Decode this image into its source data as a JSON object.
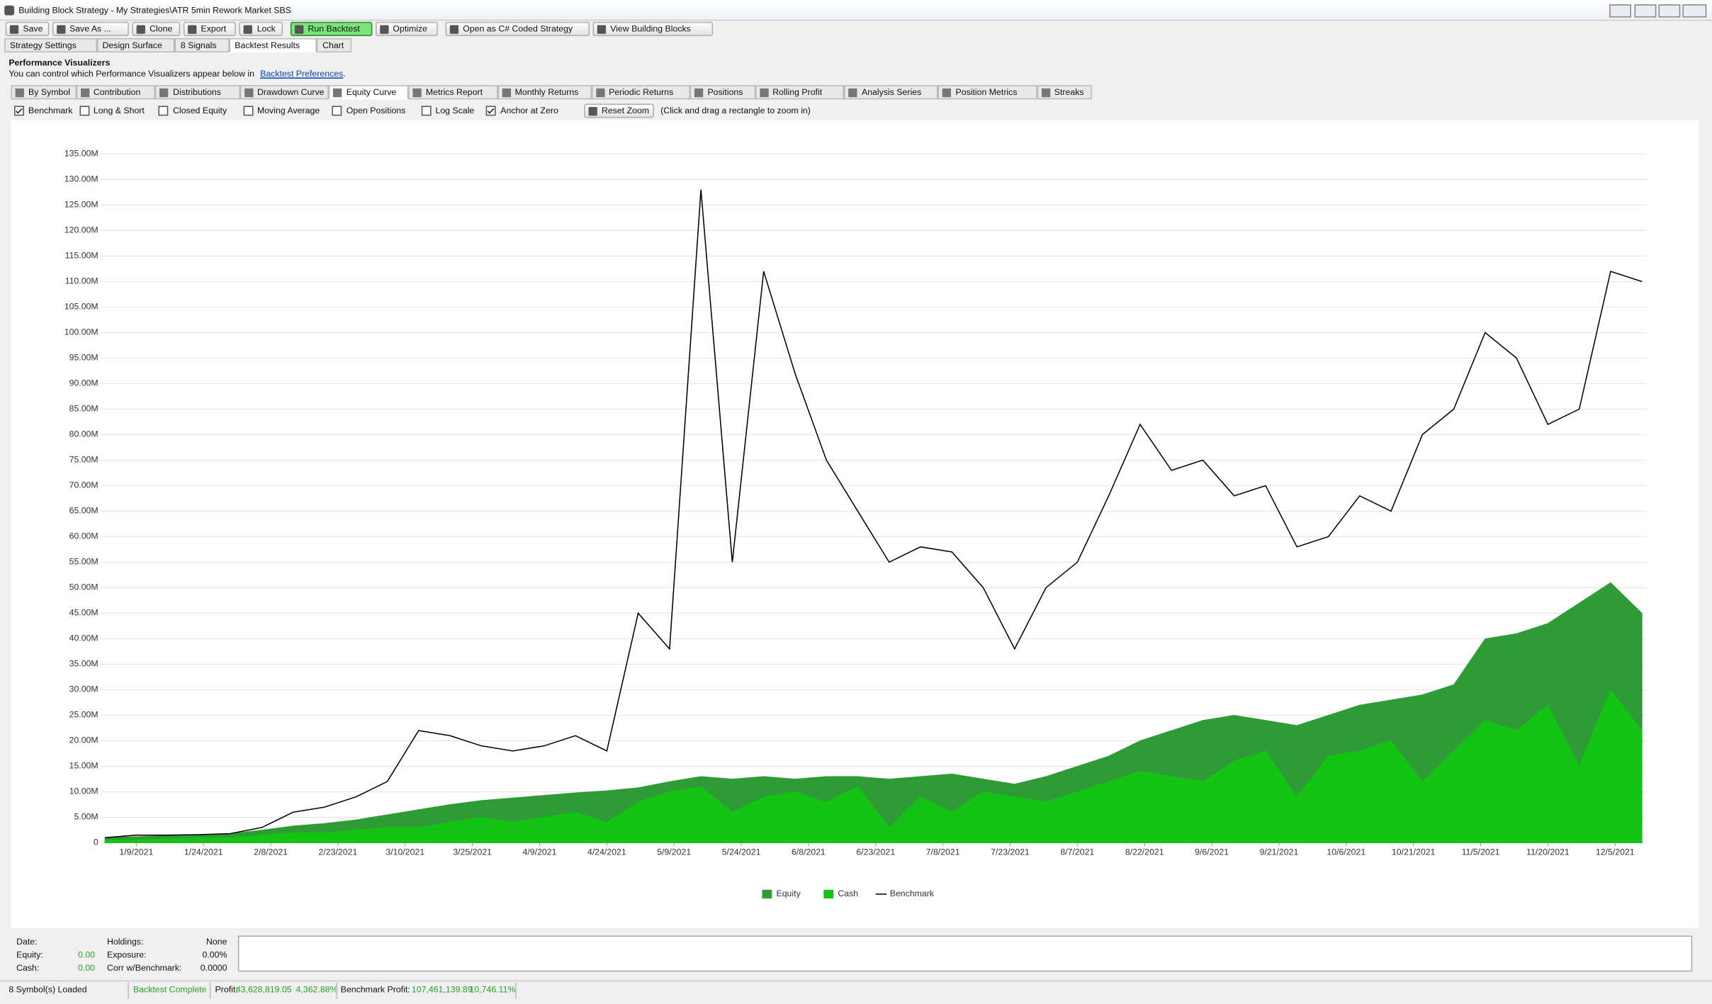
{
  "window": {
    "title": "Building Block Strategy - My Strategies\\ATR 5min Rework Market SBS"
  },
  "toolbar": {
    "items": [
      "Save",
      "Save As ...",
      "Clone",
      "Export",
      "Lock",
      "Run Backtest",
      "Optimize",
      "Open as C# Coded Strategy",
      "View Building Blocks"
    ],
    "highlight": 5
  },
  "tabs": {
    "items": [
      "Strategy Settings",
      "Design Surface",
      "8 Signals",
      "Backtest Results",
      "Chart"
    ],
    "active": 3
  },
  "visualizers": {
    "heading": "Performance Visualizers",
    "note": "You can control which Performance Visualizers appear below in",
    "link": "Backtest Preferences",
    "note_end": "."
  },
  "viz_tabs": {
    "items": [
      "By Symbol",
      "Contribution",
      "Distributions",
      "Drawdown Curve",
      "Equity Curve",
      "Metrics Report",
      "Monthly Returns",
      "Periodic Returns",
      "Positions",
      "Rolling Profit",
      "Analysis Series",
      "Position Metrics",
      "Streaks"
    ],
    "active": 4
  },
  "options": {
    "checkboxes": [
      {
        "label": "Benchmark",
        "checked": true
      },
      {
        "label": "Long & Short",
        "checked": false
      },
      {
        "label": "Closed Equity",
        "checked": false
      },
      {
        "label": "Moving Average",
        "checked": false
      },
      {
        "label": "Open Positions",
        "checked": false
      },
      {
        "label": "Log Scale",
        "checked": false
      },
      {
        "label": "Anchor at Zero",
        "checked": true
      }
    ],
    "button": "Reset Zoom",
    "hint": "(Click and drag a rectangle to zoom in)"
  },
  "chart": {
    "type": "area",
    "x": [
      "1/2/2021",
      "1/9/2021",
      "1/16/2021",
      "1/23/2021",
      "1/30/2021",
      "2/6/2021",
      "2/13/2021",
      "2/20/2021",
      "2/27/2021",
      "3/6/2021",
      "3/13/2021",
      "3/20/2021",
      "3/27/2021",
      "4/3/2021",
      "4/10/2021",
      "4/17/2021",
      "4/24/2021",
      "5/1/2021",
      "5/8/2021",
      "5/15/2021",
      "5/22/2021",
      "5/29/2021",
      "6/5/2021",
      "6/12/2021",
      "6/19/2021",
      "6/26/2021",
      "7/3/2021",
      "7/10/2021",
      "7/17/2021",
      "7/24/2021",
      "7/31/2021",
      "8/7/2021",
      "8/14/2021",
      "8/21/2021",
      "8/28/2021",
      "9/4/2021",
      "9/11/2021",
      "9/18/2021",
      "9/25/2021",
      "10/2/2021",
      "10/9/2021",
      "10/16/2021",
      "10/23/2021",
      "10/30/2021",
      "11/6/2021",
      "11/13/2021",
      "11/20/2021",
      "11/27/2021",
      "12/4/2021",
      "12/11/2021"
    ],
    "series": [
      {
        "name": "Equity",
        "kind": "area",
        "color": "#2e9b37",
        "values": [
          1000000,
          1200000,
          1400000,
          1600000,
          1800000,
          2500000,
          3300000,
          3800000,
          4500000,
          5500000,
          6500000,
          7500000,
          8300000,
          8800000,
          9300000,
          9800000,
          10200000,
          10800000,
          12000000,
          13000000,
          12500000,
          13000000,
          12500000,
          13000000,
          13000000,
          12500000,
          13000000,
          13500000,
          12500000,
          11500000,
          13000000,
          15000000,
          17000000,
          20000000,
          22000000,
          24000000,
          25000000,
          24000000,
          23000000,
          25000000,
          27000000,
          28000000,
          29000000,
          31000000,
          40000000,
          41000000,
          43000000,
          47000000,
          51000000,
          45000000
        ]
      },
      {
        "name": "Cash",
        "kind": "area",
        "color": "#14c314",
        "values": [
          500000,
          600000,
          800000,
          1000000,
          1000000,
          1500000,
          2000000,
          2000000,
          2500000,
          3000000,
          3000000,
          4000000,
          5000000,
          4000000,
          5000000,
          6000000,
          4000000,
          8000000,
          10000000,
          11000000,
          6000000,
          9000000,
          10000000,
          8000000,
          11000000,
          3000000,
          9000000,
          6000000,
          10000000,
          9000000,
          8000000,
          10000000,
          12000000,
          14000000,
          13000000,
          12000000,
          16000000,
          18000000,
          9000000,
          17000000,
          18000000,
          20000000,
          12000000,
          18000000,
          24000000,
          22000000,
          27000000,
          15000000,
          30000000,
          22000000
        ]
      },
      {
        "name": "Benchmark",
        "kind": "line",
        "color": "#000000",
        "values": [
          1000000,
          1500000,
          1500000,
          1600000,
          1800000,
          3000000,
          6000000,
          7000000,
          9000000,
          12000000,
          22000000,
          21000000,
          19000000,
          18000000,
          19000000,
          21000000,
          18000000,
          45000000,
          38000000,
          128000000,
          55000000,
          112000000,
          92000000,
          75000000,
          65000000,
          55000000,
          58000000,
          57000000,
          50000000,
          38000000,
          50000000,
          55000000,
          68000000,
          82000000,
          73000000,
          75000000,
          68000000,
          70000000,
          58000000,
          60000000,
          68000000,
          65000000,
          80000000,
          85000000,
          100000000,
          95000000,
          82000000,
          85000000,
          112000000,
          110000000
        ]
      }
    ],
    "xlim": [
      "1/1/2021",
      "12/12/2021"
    ],
    "xticks": [
      "1/9/2021",
      "1/24/2021",
      "2/8/2021",
      "2/23/2021",
      "3/10/2021",
      "3/25/2021",
      "4/9/2021",
      "4/24/2021",
      "5/9/2021",
      "5/24/2021",
      "6/8/2021",
      "6/23/2021",
      "7/8/2021",
      "7/23/2021",
      "8/7/2021",
      "8/22/2021",
      "9/6/2021",
      "9/21/2021",
      "10/6/2021",
      "10/21/2021",
      "11/5/2021",
      "11/20/2021",
      "12/5/2021"
    ],
    "ylim": [
      0,
      137000000
    ],
    "yticks": [
      0,
      {
        "value": 5000000,
        "label": "5.00M"
      },
      {
        "value": 10000000,
        "label": "10.00M"
      },
      {
        "value": 15000000,
        "label": "15.00M"
      },
      {
        "value": 20000000,
        "label": "20.00M"
      },
      {
        "value": 25000000,
        "label": "25.00M"
      },
      {
        "value": 30000000,
        "label": "30.00M"
      },
      {
        "value": 35000000,
        "label": "35.00M"
      },
      {
        "value": 40000000,
        "label": "40.00M"
      },
      {
        "value": 45000000,
        "label": "45.00M"
      },
      {
        "value": 50000000,
        "label": "50.00M"
      },
      {
        "value": 55000000,
        "label": "55.00M"
      },
      {
        "value": 60000000,
        "label": "60.00M"
      },
      {
        "value": 65000000,
        "label": "65.00M"
      },
      {
        "value": 70000000,
        "label": "70.00M"
      },
      {
        "value": 75000000,
        "label": "75.00M"
      },
      {
        "value": 80000000,
        "label": "80.00M"
      },
      {
        "value": 85000000,
        "label": "85.00M"
      },
      {
        "value": 90000000,
        "label": "90.00M"
      },
      {
        "value": 95000000,
        "label": "95.00M"
      },
      {
        "value": 100000000,
        "label": "100.00M"
      },
      {
        "value": 105000000,
        "label": "105.00M"
      },
      {
        "value": 110000000,
        "label": "110.00M"
      },
      {
        "value": 115000000,
        "label": "115.00M"
      },
      {
        "value": 120000000,
        "label": "120.00M"
      },
      {
        "value": 125000000,
        "label": "125.00M"
      },
      {
        "value": 130000000,
        "label": "130.00M"
      },
      {
        "value": 135000000,
        "label": "135.00M"
      }
    ],
    "grid": true,
    "log_scale": false,
    "legend": "bottom"
  },
  "info": {
    "date_label": "Date:",
    "equity_label": "Equity:",
    "equity": "0.00",
    "cash_label": "Cash:",
    "cash": "0.00",
    "holdings_label": "Holdings:",
    "holdings": "None",
    "exposure_label": "Exposure:",
    "exposure": "0.00%",
    "corr_label": "Corr w/Benchmark:",
    "corr": "0.0000"
  },
  "status": {
    "symbols": "8 Symbol(s) Loaded",
    "state": "Backtest Complete",
    "profit_label": "Profit:",
    "profit": "43,628,819.05",
    "profit_pct": "4,362.88%",
    "benchmark_label": "Benchmark Profit:",
    "benchmark": "107,461,139.89",
    "benchmark_pct": "10,746.11%"
  }
}
